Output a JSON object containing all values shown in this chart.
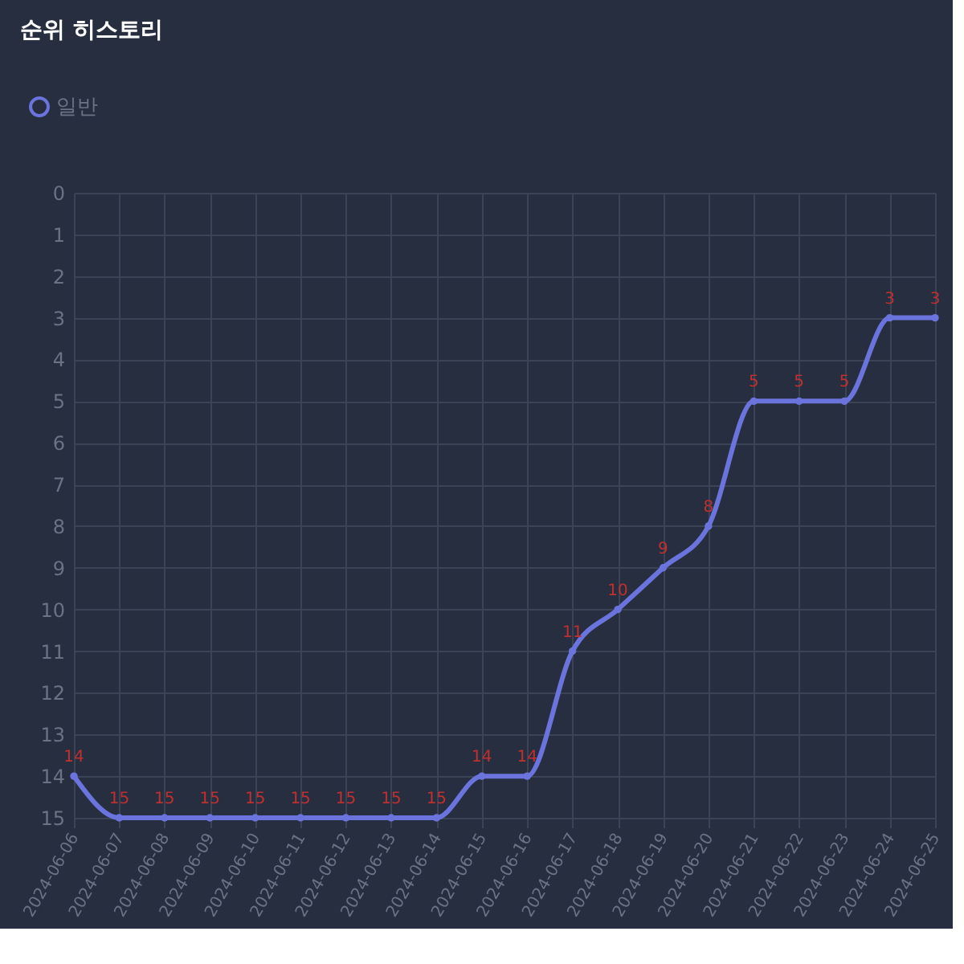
{
  "chart_data": {
    "type": "line",
    "title": "순위 히스토리",
    "categories": [
      "2024-06-06",
      "2024-06-07",
      "2024-06-08",
      "2024-06-09",
      "2024-06-10",
      "2024-06-11",
      "2024-06-12",
      "2024-06-13",
      "2024-06-14",
      "2024-06-15",
      "2024-06-16",
      "2024-06-17",
      "2024-06-18",
      "2024-06-19",
      "2024-06-20",
      "2024-06-21",
      "2024-06-22",
      "2024-06-23",
      "2024-06-24",
      "2024-06-25"
    ],
    "series": [
      {
        "name": "일반",
        "color": "#6b74dc",
        "values": [
          14,
          15,
          15,
          15,
          15,
          15,
          15,
          15,
          15,
          14,
          14,
          11,
          10,
          9,
          8,
          5,
          5,
          5,
          3,
          3
        ]
      }
    ],
    "ylim": [
      15,
      0
    ],
    "yticks": [
      0,
      1,
      2,
      3,
      4,
      5,
      6,
      7,
      8,
      9,
      10,
      11,
      12,
      13,
      14,
      15
    ],
    "grid": true,
    "legend": "top left",
    "marker": "circle",
    "data_labels": true
  }
}
